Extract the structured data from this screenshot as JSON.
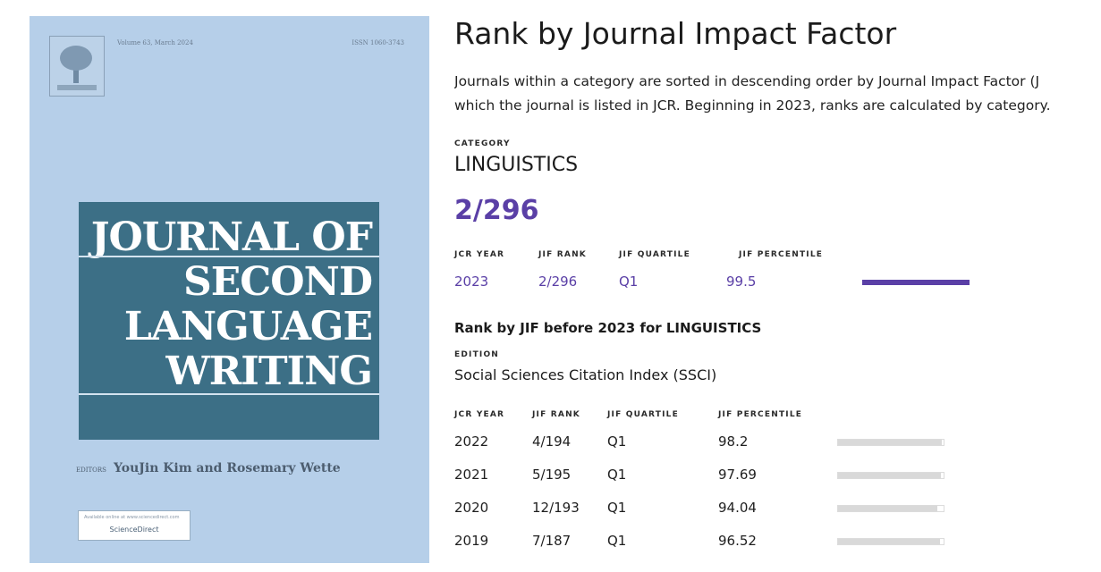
{
  "cover": {
    "volume_line": "Volume 63, March 2024",
    "issn_line": "ISSN 1060-3743",
    "title_lines": [
      "JOURNAL OF",
      "SECOND",
      "LANGUAGE",
      "WRITING"
    ],
    "editors_label": "EDITORS",
    "editors": "YouJin Kim and Rosemary Wette",
    "sd_small": "Available online at www.sciencedirect.com",
    "sd_label": "ScienceDirect"
  },
  "panel": {
    "title": "Rank by Journal Impact Factor",
    "desc_line1": "Journals within a category are sorted in descending order by Journal Impact Factor (J",
    "desc_line2": "which the journal is listed in JCR. Beginning in 2023, ranks are calculated by category.",
    "category_label": "CATEGORY",
    "category_value": "LINGUISTICS",
    "rank_big": "2/296",
    "headers": [
      "JCR YEAR",
      "JIF RANK",
      "JIF QUARTILE",
      "JIF PERCENTILE"
    ],
    "current": {
      "year": "2023",
      "rank": "2/296",
      "quartile": "Q1",
      "percentile": "99.5"
    },
    "before_title": "Rank by JIF before 2023 for LINGUISTICS",
    "edition_label": "EDITION",
    "edition_value": "Social Sciences Citation Index (SSCI)",
    "rows": [
      {
        "year": "2022",
        "rank": "4/194",
        "quartile": "Q1",
        "percentile": "98.2",
        "pct": 98.2
      },
      {
        "year": "2021",
        "rank": "5/195",
        "quartile": "Q1",
        "percentile": "97.69",
        "pct": 97.69
      },
      {
        "year": "2020",
        "rank": "12/193",
        "quartile": "Q1",
        "percentile": "94.04",
        "pct": 94.04
      },
      {
        "year": "2019",
        "rank": "7/187",
        "quartile": "Q1",
        "percentile": "96.52",
        "pct": 96.52
      }
    ]
  },
  "colors": {
    "accent": "#5a3fa6",
    "cover_bg": "#b6cfe9",
    "cover_band": "#3c6f86"
  }
}
